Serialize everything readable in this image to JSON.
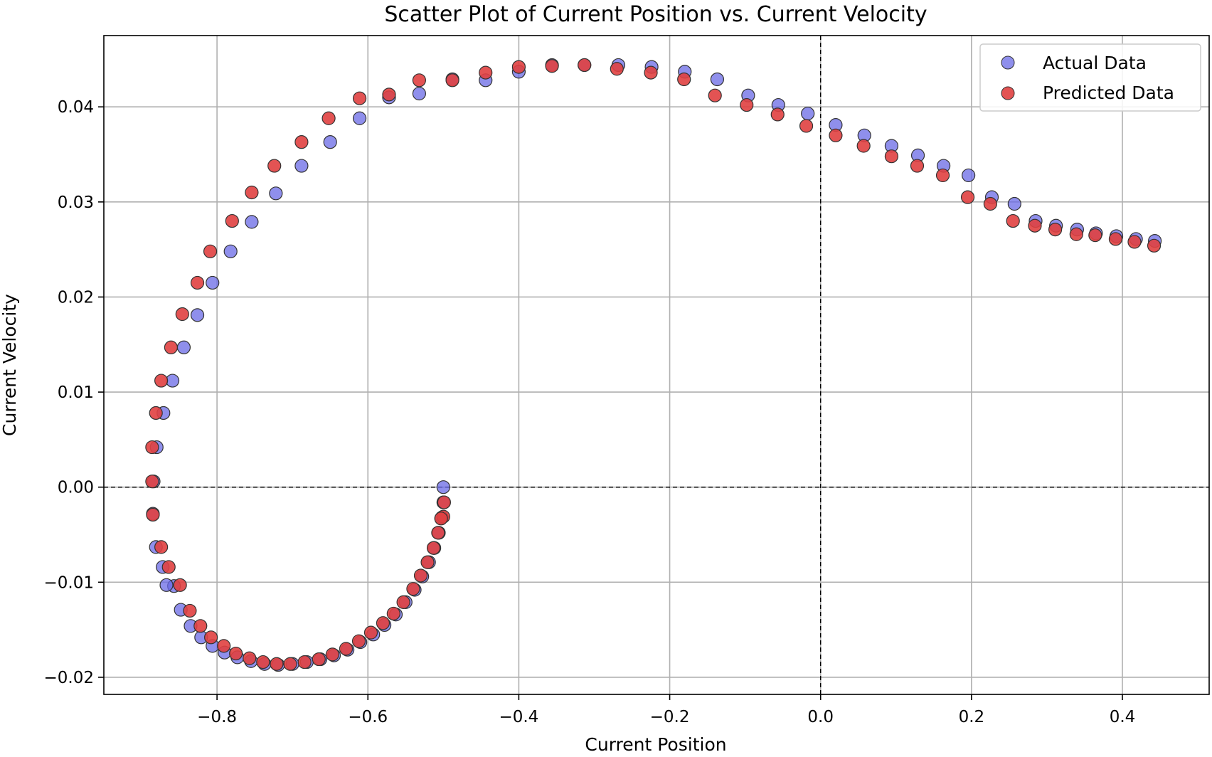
{
  "chart_data": {
    "type": "scatter",
    "title": "Scatter Plot of Current Position vs. Current Velocity",
    "xlabel": "Current Position",
    "ylabel": "Current Velocity",
    "xlim": [
      -0.95,
      0.515
    ],
    "ylim": [
      -0.0218,
      0.0475
    ],
    "grid": true,
    "legend_position": "top-right",
    "x_ticks": [
      -0.8,
      -0.6,
      -0.4,
      -0.2,
      0.0,
      0.2,
      0.4
    ],
    "x_tick_labels": [
      "−0.8",
      "−0.6",
      "−0.4",
      "−0.2",
      "0.0",
      "0.2",
      "0.4"
    ],
    "y_ticks": [
      -0.02,
      -0.01,
      0.0,
      0.01,
      0.02,
      0.03,
      0.04
    ],
    "y_tick_labels": [
      "−0.02",
      "−0.01",
      "0.00",
      "0.01",
      "0.02",
      "0.03",
      "0.04"
    ],
    "reference_lines": {
      "x": 0.0,
      "y": 0.0
    },
    "series": [
      {
        "name": "Actual Data",
        "color": "#6a6ae6",
        "points": [
          [
            -0.5,
            0.0
          ],
          [
            -0.5,
            -0.0016
          ],
          [
            -0.502,
            -0.0032
          ],
          [
            -0.506,
            -0.0048
          ],
          [
            -0.512,
            -0.0064
          ],
          [
            -0.519,
            -0.0079
          ],
          [
            -0.528,
            -0.0094
          ],
          [
            -0.538,
            -0.0108
          ],
          [
            -0.55,
            -0.0121
          ],
          [
            -0.563,
            -0.0134
          ],
          [
            -0.578,
            -0.0145
          ],
          [
            -0.593,
            -0.0155
          ],
          [
            -0.61,
            -0.0163
          ],
          [
            -0.627,
            -0.0171
          ],
          [
            -0.645,
            -0.0177
          ],
          [
            -0.663,
            -0.0181
          ],
          [
            -0.681,
            -0.0184
          ],
          [
            -0.7,
            -0.0186
          ],
          [
            -0.719,
            -0.0187
          ],
          [
            -0.737,
            -0.0186
          ],
          [
            -0.755,
            -0.0183
          ],
          [
            -0.773,
            -0.0179
          ],
          [
            -0.79,
            -0.0174
          ],
          [
            -0.806,
            -0.0167
          ],
          [
            -0.821,
            -0.0158
          ],
          [
            -0.835,
            -0.0146
          ],
          [
            -0.848,
            -0.0129
          ],
          [
            -0.857,
            -0.0104
          ],
          [
            -0.867,
            -0.0103
          ],
          [
            -0.872,
            -0.0084
          ],
          [
            -0.881,
            -0.0063
          ],
          [
            -0.885,
            -0.0028
          ],
          [
            -0.884,
            0.0006
          ],
          [
            -0.88,
            0.0042
          ],
          [
            -0.871,
            0.0078
          ],
          [
            -0.859,
            0.0112
          ],
          [
            -0.844,
            0.0147
          ],
          [
            -0.826,
            0.0181
          ],
          [
            -0.806,
            0.0215
          ],
          [
            -0.782,
            0.0248
          ],
          [
            -0.754,
            0.0279
          ],
          [
            -0.722,
            0.0309
          ],
          [
            -0.688,
            0.0338
          ],
          [
            -0.65,
            0.0363
          ],
          [
            -0.611,
            0.0388
          ],
          [
            -0.572,
            0.041
          ],
          [
            -0.532,
            0.0414
          ],
          [
            -0.488,
            0.0429
          ],
          [
            -0.444,
            0.0428
          ],
          [
            -0.4,
            0.0437
          ],
          [
            -0.356,
            0.0444
          ],
          [
            -0.313,
            0.0444
          ],
          [
            -0.268,
            0.0444
          ],
          [
            -0.224,
            0.0442
          ],
          [
            -0.18,
            0.0437
          ],
          [
            -0.137,
            0.0429
          ],
          [
            -0.096,
            0.0412
          ],
          [
            -0.056,
            0.0402
          ],
          [
            -0.017,
            0.0393
          ],
          [
            0.02,
            0.0381
          ],
          [
            0.058,
            0.037
          ],
          [
            0.094,
            0.0359
          ],
          [
            0.129,
            0.0349
          ],
          [
            0.163,
            0.0338
          ],
          [
            0.196,
            0.0328
          ],
          [
            0.227,
            0.0305
          ],
          [
            0.257,
            0.0298
          ],
          [
            0.285,
            0.028
          ],
          [
            0.312,
            0.0275
          ],
          [
            0.34,
            0.0271
          ],
          [
            0.365,
            0.0267
          ],
          [
            0.392,
            0.0264
          ],
          [
            0.418,
            0.0261
          ],
          [
            0.443,
            0.0259
          ]
        ]
      },
      {
        "name": "Predicted Data",
        "color": "#e04040",
        "points": [
          [
            -0.499,
            -0.0016
          ],
          [
            -0.5,
            -0.0031
          ],
          [
            -0.503,
            -0.0033
          ],
          [
            -0.507,
            -0.0048
          ],
          [
            -0.513,
            -0.0064
          ],
          [
            -0.521,
            -0.0079
          ],
          [
            -0.53,
            -0.0093
          ],
          [
            -0.54,
            -0.0107
          ],
          [
            -0.553,
            -0.0121
          ],
          [
            -0.566,
            -0.0133
          ],
          [
            -0.58,
            -0.0143
          ],
          [
            -0.596,
            -0.0153
          ],
          [
            -0.612,
            -0.0162
          ],
          [
            -0.629,
            -0.017
          ],
          [
            -0.647,
            -0.0176
          ],
          [
            -0.665,
            -0.0181
          ],
          [
            -0.684,
            -0.0184
          ],
          [
            -0.703,
            -0.0186
          ],
          [
            -0.721,
            -0.0186
          ],
          [
            -0.739,
            -0.0184
          ],
          [
            -0.757,
            -0.018
          ],
          [
            -0.775,
            -0.0175
          ],
          [
            -0.791,
            -0.0167
          ],
          [
            -0.808,
            -0.0158
          ],
          [
            -0.822,
            -0.0146
          ],
          [
            -0.836,
            -0.013
          ],
          [
            -0.849,
            -0.0103
          ],
          [
            -0.864,
            -0.0084
          ],
          [
            -0.874,
            -0.0063
          ],
          [
            -0.885,
            -0.0029
          ],
          [
            -0.886,
            0.0006
          ],
          [
            -0.886,
            0.0042
          ],
          [
            -0.881,
            0.0078
          ],
          [
            -0.874,
            0.0112
          ],
          [
            -0.861,
            0.0147
          ],
          [
            -0.846,
            0.0182
          ],
          [
            -0.826,
            0.0215
          ],
          [
            -0.809,
            0.0248
          ],
          [
            -0.78,
            0.028
          ],
          [
            -0.754,
            0.031
          ],
          [
            -0.724,
            0.0338
          ],
          [
            -0.688,
            0.0363
          ],
          [
            -0.652,
            0.0388
          ],
          [
            -0.611,
            0.0409
          ],
          [
            -0.572,
            0.0413
          ],
          [
            -0.532,
            0.0428
          ],
          [
            -0.488,
            0.0428
          ],
          [
            -0.444,
            0.0436
          ],
          [
            -0.4,
            0.0442
          ],
          [
            -0.356,
            0.0443
          ],
          [
            -0.313,
            0.0444
          ],
          [
            -0.27,
            0.044
          ],
          [
            -0.225,
            0.0436
          ],
          [
            -0.181,
            0.0429
          ],
          [
            -0.14,
            0.0412
          ],
          [
            -0.098,
            0.0402
          ],
          [
            -0.057,
            0.0392
          ],
          [
            -0.019,
            0.038
          ],
          [
            0.02,
            0.037
          ],
          [
            0.057,
            0.0359
          ],
          [
            0.094,
            0.0348
          ],
          [
            0.128,
            0.0338
          ],
          [
            0.162,
            0.0328
          ],
          [
            0.195,
            0.0305
          ],
          [
            0.225,
            0.0298
          ],
          [
            0.255,
            0.028
          ],
          [
            0.284,
            0.0275
          ],
          [
            0.311,
            0.0271
          ],
          [
            0.339,
            0.0266
          ],
          [
            0.364,
            0.0265
          ],
          [
            0.391,
            0.0261
          ],
          [
            0.416,
            0.0258
          ],
          [
            0.442,
            0.0254
          ]
        ]
      }
    ]
  }
}
